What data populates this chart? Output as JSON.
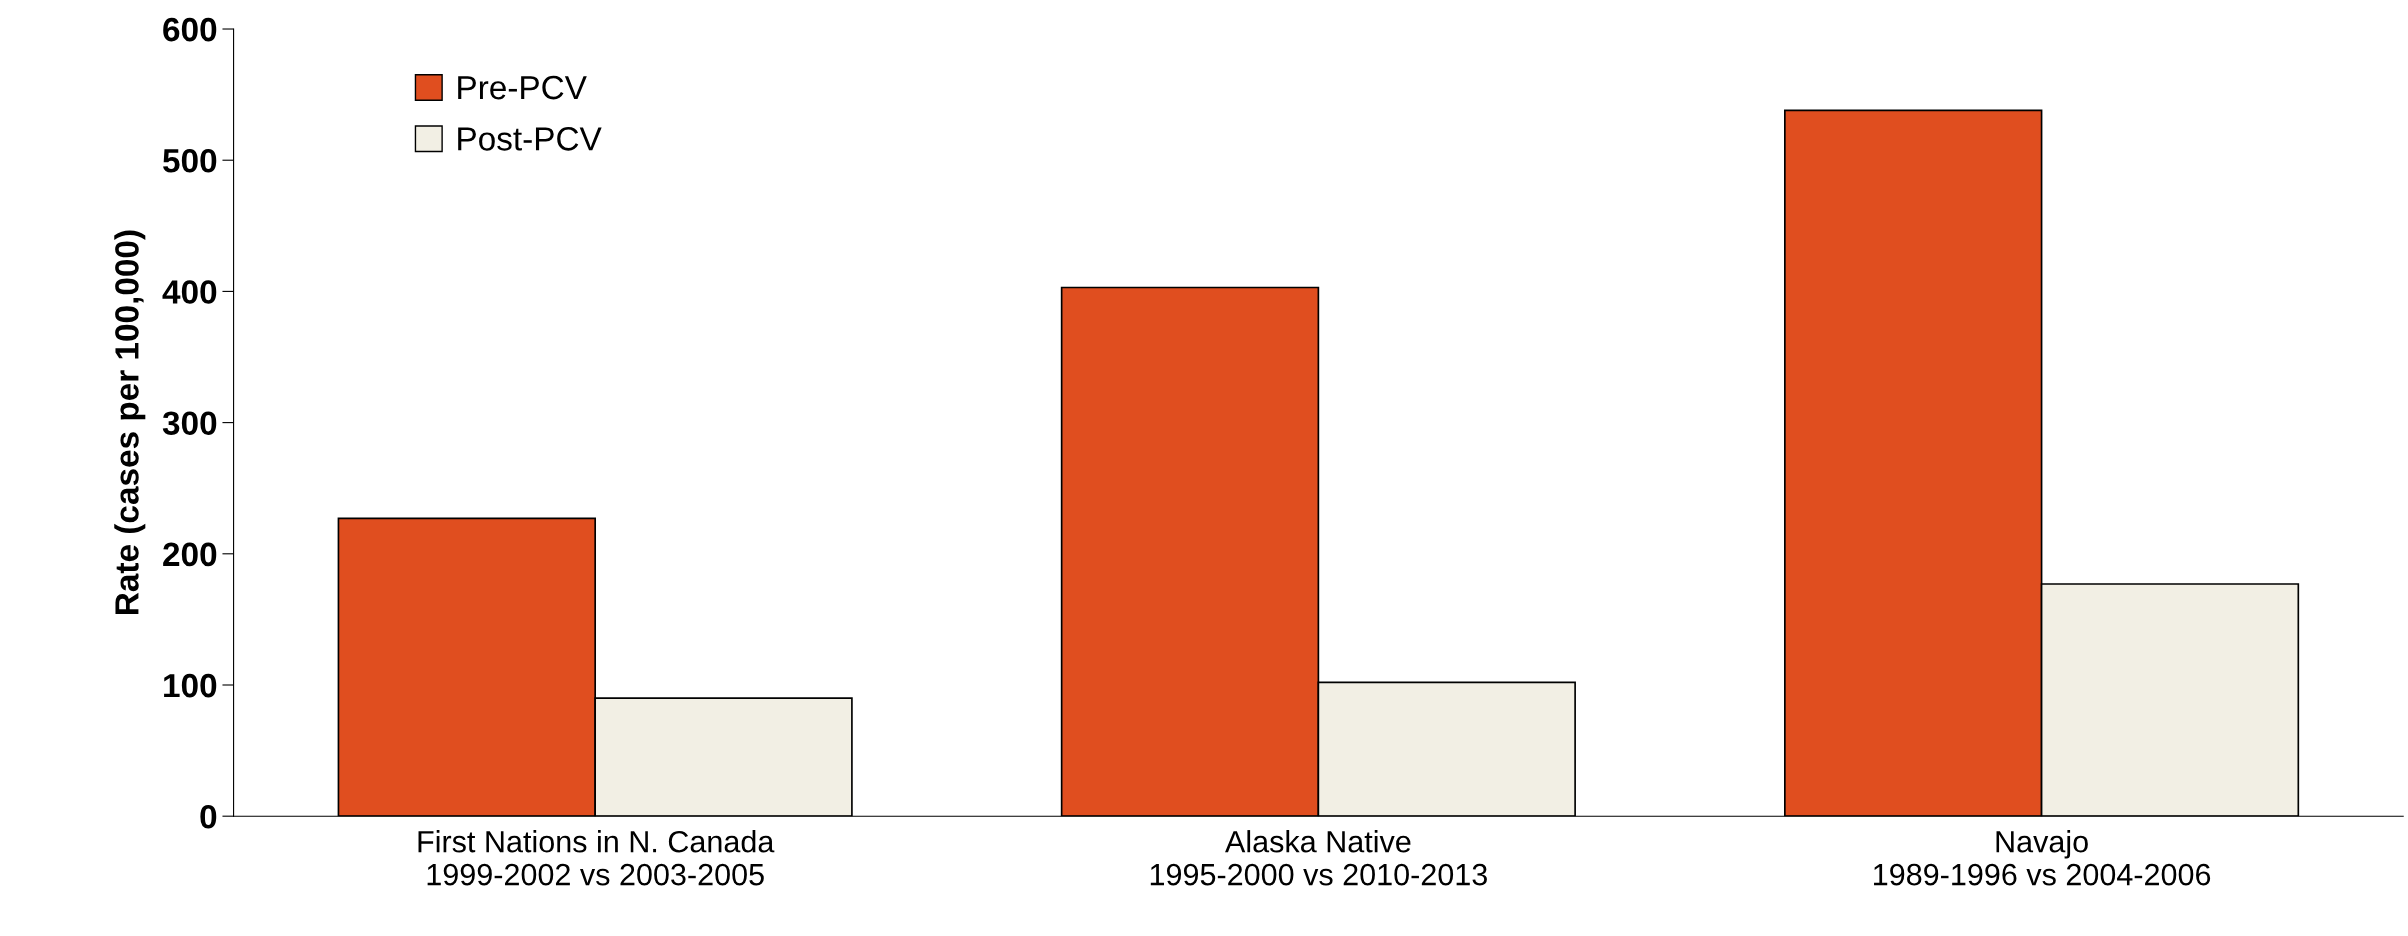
{
  "chart_data": {
    "type": "bar",
    "ylabel": "Rate (cases per 100,000)",
    "categories": [
      "First Nations in N. Canada\n1999-2002 vs 2003-2005",
      "Alaska Native\n1995-2000 vs 2010-2013",
      "Navajo\n1989-1996 vs 2004-2006"
    ],
    "series": [
      {
        "name": "Pre-PCV",
        "color": "#e04e1f",
        "values": [
          227,
          403,
          538
        ]
      },
      {
        "name": "Post-PCV",
        "color": "#f2efe4",
        "values": [
          90,
          102,
          177
        ]
      }
    ],
    "ylim": [
      0,
      600
    ],
    "yticks": [
      0,
      100,
      200,
      300,
      400,
      500,
      600
    ],
    "grid": false,
    "legend": "top left"
  }
}
